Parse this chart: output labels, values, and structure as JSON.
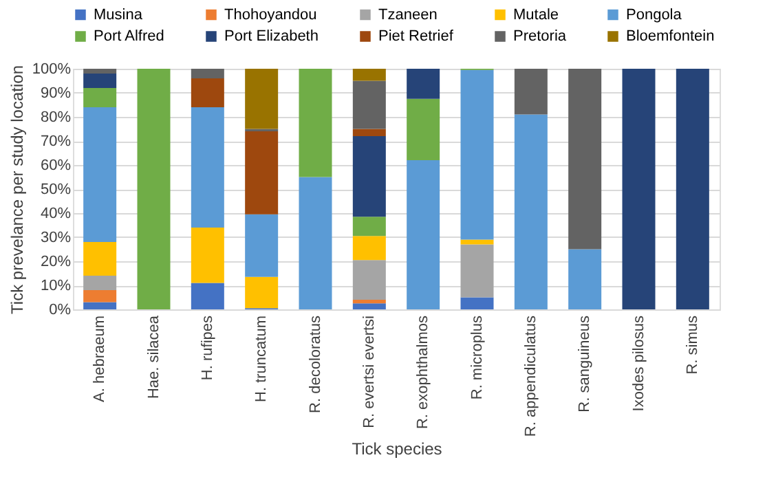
{
  "chart_data": {
    "type": "bar",
    "stacked": true,
    "xlabel": "Tick species",
    "ylabel": "Tick prevelance per study location",
    "categories": [
      "A. hebraeum",
      "Hae. silacea",
      "H. rufipes",
      "H. truncatum",
      "R. decoloratus",
      "R. evertsi evertsi",
      "R. exophthalmos",
      "R. microplus",
      "R. appendiculatus",
      "R. sanguineus",
      "Ixodes pilosus",
      "R. simus"
    ],
    "series": [
      {
        "name": "Musina",
        "color": "#4472c4",
        "values": [
          3,
          null,
          11,
          0.5,
          null,
          2.5,
          null,
          5,
          null,
          null,
          null,
          null
        ]
      },
      {
        "name": "Thohoyandou",
        "color": "#ed7d31",
        "values": [
          5,
          null,
          null,
          null,
          null,
          1.5,
          null,
          null,
          null,
          null,
          null,
          null
        ]
      },
      {
        "name": "Tzaneen",
        "color": "#a5a5a5",
        "values": [
          6,
          null,
          null,
          null,
          null,
          16.5,
          null,
          22,
          null,
          null,
          null,
          null
        ]
      },
      {
        "name": "Mutale",
        "color": "#ffc000",
        "values": [
          14,
          null,
          23,
          13,
          null,
          10,
          null,
          2,
          null,
          null,
          null,
          null
        ]
      },
      {
        "name": "Pongola",
        "color": "#5b9bd5",
        "values": [
          56,
          null,
          50,
          26,
          55,
          null,
          62,
          70.5,
          81,
          25,
          null,
          null
        ]
      },
      {
        "name": "Port Alfred",
        "color": "#70ad47",
        "values": [
          8,
          100,
          null,
          null,
          45,
          8,
          25.5,
          0.5,
          null,
          null,
          null,
          null
        ]
      },
      {
        "name": "Port Elizabeth",
        "color": "#264478",
        "values": [
          6,
          null,
          null,
          null,
          null,
          33.5,
          12.5,
          null,
          null,
          null,
          100,
          100
        ]
      },
      {
        "name": "Piet Retrief",
        "color": "#9e480e",
        "values": [
          null,
          null,
          12,
          34.5,
          null,
          3,
          null,
          null,
          null,
          null,
          null,
          null
        ]
      },
      {
        "name": "Pretoria",
        "color": "#636363",
        "values": [
          2,
          null,
          4,
          1,
          null,
          20,
          null,
          null,
          19,
          75,
          null,
          null
        ]
      },
      {
        "name": "Bloemfontein",
        "color": "#997300",
        "values": [
          null,
          null,
          null,
          25,
          null,
          5,
          null,
          null,
          null,
          null,
          null,
          null
        ]
      }
    ],
    "ylim": [
      0,
      100
    ],
    "yticks": [
      {
        "value": 0,
        "label": "0%"
      },
      {
        "value": 10,
        "label": "10%"
      },
      {
        "value": 20,
        "label": "20%"
      },
      {
        "value": 30,
        "label": "30%"
      },
      {
        "value": 40,
        "label": "40%"
      },
      {
        "value": 50,
        "label": "50%"
      },
      {
        "value": 60,
        "label": "60%"
      },
      {
        "value": 70,
        "label": "70%"
      },
      {
        "value": 80,
        "label": "80%"
      },
      {
        "value": 90,
        "label": "90%"
      },
      {
        "value": 100,
        "label": "100%"
      }
    ],
    "grid": "y",
    "legend": "top"
  }
}
